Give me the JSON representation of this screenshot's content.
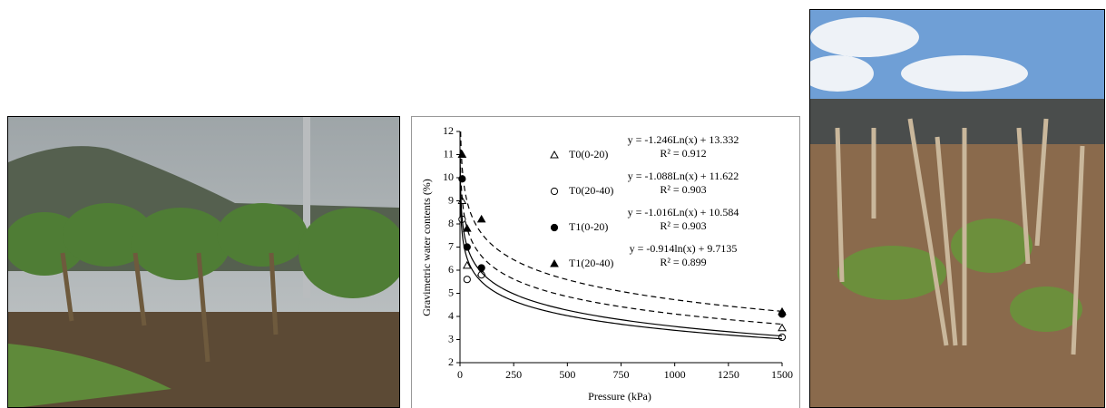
{
  "chart_data": {
    "type": "scatter",
    "xlabel": "Pressure (kPa)",
    "ylabel": "Gravimetric water contents (%)",
    "xlim": [
      0,
      1500
    ],
    "xticks": [
      0,
      250,
      500,
      750,
      1000,
      1250,
      1500
    ],
    "ylim": [
      2,
      12
    ],
    "yticks": [
      2,
      3,
      4,
      5,
      6,
      7,
      8,
      9,
      10,
      11,
      12
    ],
    "series": [
      {
        "name": "T0(0-20)",
        "marker": "open-triangle",
        "color": "#000000",
        "x": [
          10,
          33,
          100,
          1500
        ],
        "values": [
          9.0,
          6.2,
          5.9,
          3.5
        ],
        "fit": {
          "a": -1.246,
          "b": 13.332,
          "dashed": true,
          "label": "y = -1.246Ln(x) + 13.332",
          "r2": {
            "value": 0.912,
            "label": "R² = 0.912"
          }
        }
      },
      {
        "name": "T0(20-40)",
        "marker": "open-circle",
        "color": "#000000",
        "x": [
          10,
          33,
          100,
          1500
        ],
        "values": [
          8.2,
          5.6,
          5.8,
          3.1
        ],
        "fit": {
          "a": -1.088,
          "b": 11.622,
          "dashed": true,
          "label": "y = -1.088Ln(x) + 11.622",
          "r2": {
            "value": 0.903,
            "label": "R² = 0.903"
          }
        }
      },
      {
        "name": "T1(0-20)",
        "marker": "filled-circle",
        "color": "#000000",
        "x": [
          10,
          33,
          100,
          1500
        ],
        "values": [
          9.95,
          7.0,
          6.1,
          4.1
        ],
        "fit": {
          "a": -1.016,
          "b": 10.584,
          "dashed": false,
          "label": "y = -1.016Ln(x) + 10.584",
          "r2": {
            "value": 0.903,
            "label": "R² = 0.903"
          }
        }
      },
      {
        "name": "T1(20-40)",
        "marker": "filled-triangle",
        "color": "#000000",
        "x": [
          10,
          33,
          100,
          1500
        ],
        "values": [
          11.0,
          7.8,
          8.2,
          4.2
        ],
        "fit": {
          "a": -0.914,
          "b": 9.7135,
          "dashed": false,
          "label": "y = -0.914ln(x) + 9.7135",
          "r2": {
            "value": 0.899,
            "label": "R² = 0.899"
          }
        }
      }
    ]
  }
}
